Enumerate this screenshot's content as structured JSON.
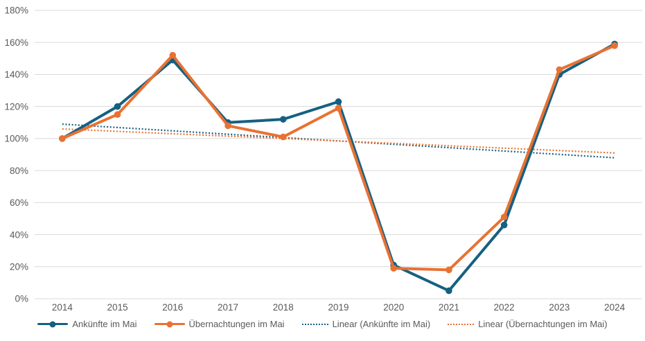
{
  "chart_data": {
    "type": "line",
    "title": "",
    "xlabel": "",
    "ylabel": "",
    "categories": [
      "2014",
      "2015",
      "2016",
      "2017",
      "2018",
      "2019",
      "2020",
      "2021",
      "2022",
      "2023",
      "2024"
    ],
    "series": [
      {
        "name": "Ankünfte im Mai",
        "color": "#156082",
        "style": "solid",
        "marker": "circle",
        "values": [
          100,
          120,
          149,
          110,
          112,
          123,
          21,
          5,
          46,
          140,
          159
        ]
      },
      {
        "name": "Übernachtungen im Mai",
        "color": "#E97132",
        "style": "solid",
        "marker": "circle",
        "values": [
          100,
          115,
          152,
          108,
          101,
          119,
          19,
          18,
          51,
          143,
          158
        ]
      },
      {
        "name": "Linear (Ankünfte im Mai)",
        "color": "#156082",
        "style": "dotted",
        "trend_start": 109,
        "trend_end": 88
      },
      {
        "name": "Linear (Übernachtungen im Mai)",
        "color": "#E97132",
        "style": "dotted",
        "trend_start": 106,
        "trend_end": 91
      }
    ],
    "ylim": [
      0,
      180
    ],
    "ytick_step": 20,
    "ytick_suffix": "%",
    "ytick_labels": [
      "0%",
      "20%",
      "40%",
      "60%",
      "80%",
      "100%",
      "120%",
      "140%",
      "160%",
      "180%"
    ],
    "grid": true,
    "gridline_color": "#D9D9D9",
    "axis_text_color": "#595959",
    "legend_position": "bottom"
  }
}
